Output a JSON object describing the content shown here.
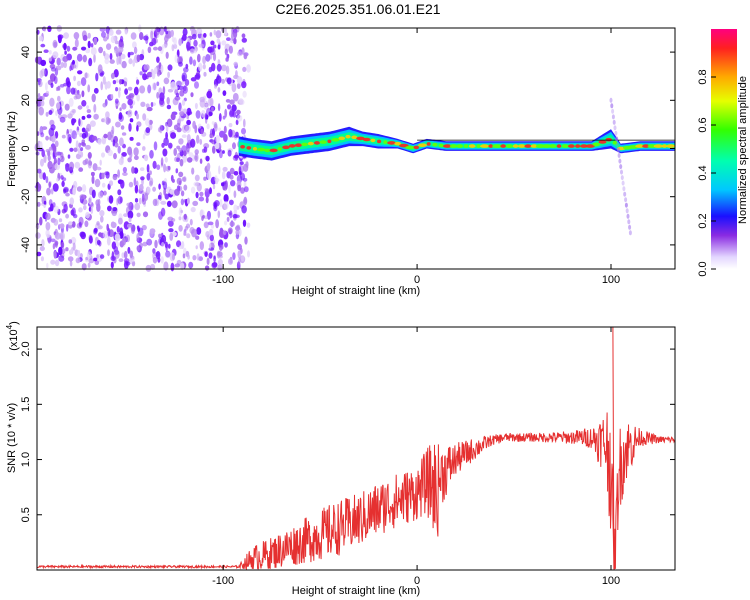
{
  "title": "C2E6.2025.351.06.01.E21",
  "chart_data": [
    {
      "type": "heatmap",
      "name": "spectrogram",
      "xlabel": "Height of straight line (km)",
      "ylabel": "Frequency (Hz)",
      "xlim": [
        -196,
        133
      ],
      "ylim": [
        -50,
        50
      ],
      "xticks": [
        -100,
        0,
        100
      ],
      "yticks": [
        -40,
        -20,
        0,
        20,
        40
      ],
      "colorbar": {
        "label": "Normalized spectral amplitude",
        "range": [
          0,
          1
        ],
        "ticks": [
          "0.0",
          "0.2",
          "0.4",
          "0.6",
          "0.8"
        ]
      },
      "noise_region_x": [
        -196,
        -91
      ],
      "ridge": {
        "x": [
          -92,
          -85,
          -75,
          -65,
          -55,
          -45,
          -35,
          -28,
          -20,
          -10,
          -2,
          5,
          15,
          30,
          50,
          70,
          90,
          100,
          105,
          115,
          133
        ],
        "freq_hz": [
          1,
          0,
          -1,
          1,
          2,
          3,
          5,
          4,
          3,
          2,
          0,
          2,
          1,
          1,
          1,
          1,
          1,
          4,
          0,
          1,
          1
        ],
        "band_halfwidth_hz": [
          4,
          4,
          4,
          4,
          4,
          4,
          4,
          3,
          3,
          2,
          2,
          2,
          2,
          2,
          2,
          2,
          2,
          4,
          2,
          2,
          2
        ]
      },
      "chirp": {
        "x": [
          100,
          110
        ],
        "freq_hz": [
          20,
          -35
        ]
      }
    },
    {
      "type": "line",
      "name": "snr",
      "xlabel": "Height of straight line (km)",
      "ylabel": "SNR (10 * v/v)",
      "scale_label": "(x10",
      "scale_exp": "4",
      "xlim": [
        -196,
        133
      ],
      "ylim": [
        0,
        2.2
      ],
      "xticks": [
        -100,
        0,
        100
      ],
      "yticks": [
        0.5,
        1.0,
        1.5,
        2.0
      ],
      "ytick_labels": [
        "0.5",
        "1.0",
        "1.5",
        "2.0"
      ],
      "envelope": {
        "x": [
          -196,
          -92,
          -85,
          -75,
          -60,
          -45,
          -30,
          -15,
          0,
          5,
          9,
          10,
          12,
          20,
          30,
          38,
          45,
          60,
          80,
          90,
          97,
          100,
          101,
          102,
          104,
          108,
          115,
          125,
          133
        ],
        "base": [
          0.03,
          0.03,
          0.1,
          0.15,
          0.25,
          0.35,
          0.45,
          0.6,
          0.7,
          0.8,
          0.75,
          0.65,
          0.85,
          1.0,
          1.1,
          1.17,
          1.2,
          1.2,
          1.2,
          1.2,
          1.15,
          1.0,
          0.15,
          0.1,
          0.9,
          1.1,
          1.2,
          1.18,
          1.18
        ],
        "amp": [
          0.01,
          0.01,
          0.12,
          0.15,
          0.2,
          0.25,
          0.25,
          0.25,
          0.25,
          0.3,
          0.45,
          0.5,
          0.3,
          0.15,
          0.1,
          0.05,
          0.04,
          0.04,
          0.06,
          0.1,
          0.3,
          0.7,
          0.5,
          0.3,
          0.4,
          0.3,
          0.08,
          0.03,
          0.03
        ]
      }
    }
  ]
}
